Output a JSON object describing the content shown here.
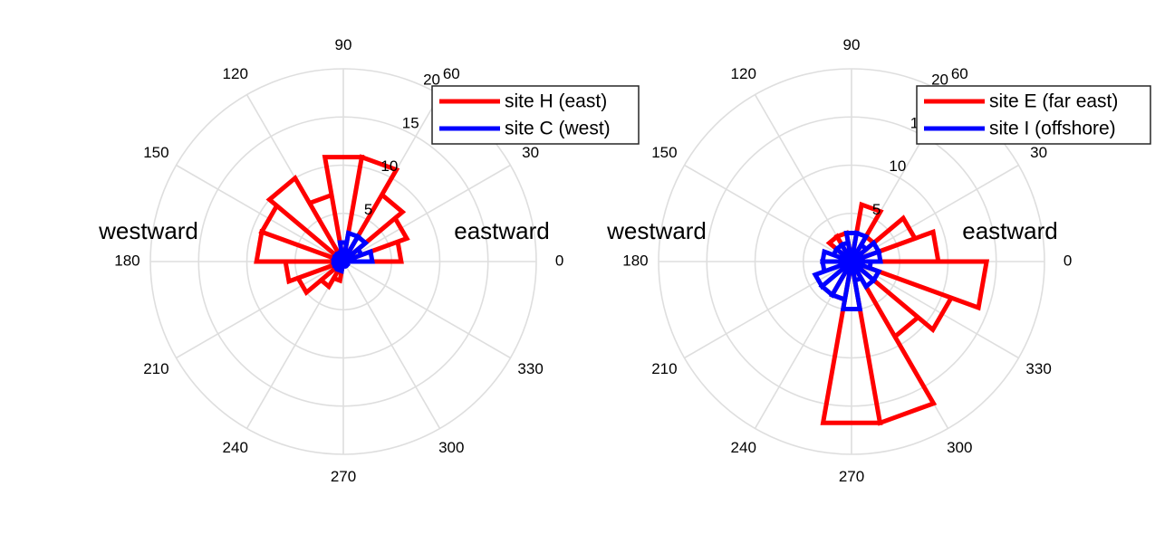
{
  "chart_data": [
    {
      "type": "polar-histogram",
      "angle_ticks": [
        "0",
        "30",
        "60",
        "90",
        "120",
        "150",
        "180",
        "210",
        "240",
        "270",
        "300",
        "330"
      ],
      "radial_ticks": [
        "5",
        "10",
        "15",
        "20"
      ],
      "rlim": [
        0,
        20
      ],
      "label_east": "eastward",
      "label_west": "westward",
      "grid": true,
      "legend_position": "top-right",
      "bin_edges_deg": [
        0,
        20,
        40,
        60,
        80,
        100,
        120,
        140,
        160,
        180,
        200,
        220,
        240,
        260,
        280,
        300,
        320,
        340,
        360
      ],
      "series": [
        {
          "name": "site H (east)",
          "color": "#ff0000",
          "values": [
            6,
            7,
            8,
            11,
            11,
            7,
            10,
            9,
            9,
            6,
            5,
            3,
            2,
            0,
            0,
            0,
            0,
            0
          ]
        },
        {
          "name": "site C (west)",
          "color": "#0000ff",
          "values": [
            3,
            2,
            3,
            3,
            2,
            1,
            1,
            1,
            1,
            1,
            1,
            0.5,
            1,
            0.5,
            0.5,
            0.5,
            0.5,
            0.5
          ]
        }
      ]
    },
    {
      "type": "polar-histogram",
      "angle_ticks": [
        "0",
        "30",
        "60",
        "90",
        "120",
        "150",
        "180",
        "210",
        "240",
        "270",
        "300",
        "330"
      ],
      "radial_ticks": [
        "5",
        "10",
        "15",
        "20"
      ],
      "rlim": [
        0,
        20
      ],
      "label_east": "eastward",
      "label_west": "westward",
      "grid": true,
      "legend_position": "top-right",
      "bin_edges_deg": [
        0,
        20,
        40,
        60,
        80,
        100,
        120,
        140,
        160,
        180,
        200,
        220,
        240,
        260,
        280,
        300,
        320,
        340,
        360
      ],
      "series": [
        {
          "name": "site E (far east)",
          "color": "#ff0000",
          "values": [
            9,
            7,
            3,
            6,
            1,
            3,
            3,
            1,
            1,
            1,
            0.5,
            0.5,
            4,
            17,
            17,
            9,
            11,
            14
          ]
        },
        {
          "name": "site I (offshore)",
          "color": "#0000ff",
          "values": [
            3,
            3,
            2,
            3,
            3,
            2,
            2,
            2,
            3,
            3,
            4,
            4,
            4,
            5,
            2,
            3,
            3,
            2
          ]
        }
      ]
    }
  ]
}
